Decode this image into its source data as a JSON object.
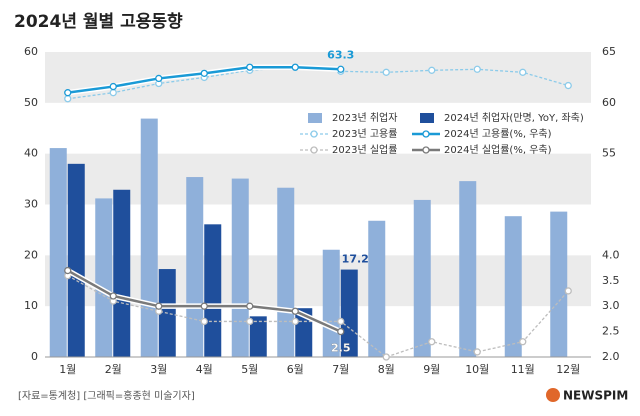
{
  "chart_data": {
    "type": "bar",
    "title": "2024년 월별 고용동향",
    "categories": [
      "1월",
      "2월",
      "3월",
      "4월",
      "5월",
      "6월",
      "7월",
      "8월",
      "9월",
      "10월",
      "11월",
      "12월"
    ],
    "ylim": [
      0,
      60
    ],
    "yticks": [
      0,
      10,
      20,
      30,
      40,
      50,
      60
    ],
    "y2lim": [
      35,
      65
    ],
    "y2ticks": [
      55,
      60,
      65
    ],
    "y3lim": [
      2,
      8
    ],
    "y3ticks": [
      {
        "value": 2,
        "label": "2.0"
      },
      2.5,
      {
        "value": 3,
        "label": "3.0"
      },
      3.5,
      {
        "value": 4,
        "label": "4.0"
      }
    ],
    "grid": true,
    "series": [
      {
        "name": "2023년 취업자",
        "type": "bar",
        "color": "#8fb0da",
        "values": [
          41.1,
          31.2,
          46.9,
          35.4,
          35.1,
          33.3,
          21.1,
          26.8,
          30.9,
          34.6,
          27.7,
          28.6
        ]
      },
      {
        "name": "2024년 취업자(만명, YoY, 좌축)",
        "type": "bar",
        "color": "#1f4f9c",
        "values": [
          38.0,
          32.9,
          17.3,
          26.1,
          8.0,
          9.6,
          17.2,
          null,
          null,
          null,
          null,
          null
        ],
        "labeled": [
          6
        ]
      },
      {
        "name": "2023년 고용률",
        "type": "line",
        "axis": "y2",
        "dashed": true,
        "color": "#8ccbea",
        "values": [
          60.4,
          61.0,
          61.9,
          62.5,
          63.2,
          63.5,
          63.1,
          63.0,
          63.2,
          63.3,
          63.0,
          61.7
        ]
      },
      {
        "name": "2024년 고용률(%, 우축)",
        "type": "line",
        "axis": "y2",
        "dashed": false,
        "color": "#1a9ad6",
        "values": [
          61.0,
          61.6,
          62.4,
          62.9,
          63.5,
          63.5,
          63.3,
          null,
          null,
          null,
          null,
          null
        ],
        "labeled": [
          6
        ]
      },
      {
        "name": "2023년 실업률",
        "type": "line",
        "axis": "y3",
        "dashed": true,
        "color": "#bdbdbd",
        "values": [
          3.6,
          3.1,
          2.9,
          2.7,
          2.7,
          2.7,
          2.7,
          2.0,
          2.3,
          2.1,
          2.3,
          3.3
        ]
      },
      {
        "name": "2024년 실업률(%, 우축)",
        "type": "line",
        "axis": "y3",
        "dashed": false,
        "color": "#7a7a7a",
        "values": [
          3.7,
          3.2,
          3.0,
          3.0,
          3.0,
          2.9,
          2.5,
          null,
          null,
          null,
          null,
          null
        ],
        "labeled": [
          6
        ]
      }
    ]
  },
  "source": "[자료=통계청] [그래픽=홍종현 미술기자]",
  "logo": "NEWSPIM"
}
